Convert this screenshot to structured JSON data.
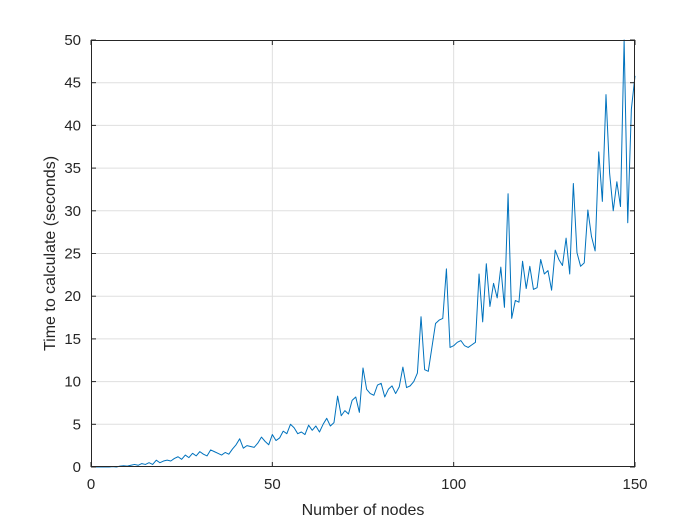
{
  "chart_data": {
    "type": "line",
    "title": "",
    "xlabel": "Number of nodes",
    "ylabel": "Time to calculate (seconds)",
    "xlim": [
      0,
      150
    ],
    "ylim": [
      0,
      50
    ],
    "xticks": [
      0,
      50,
      100,
      150
    ],
    "yticks": [
      0,
      5,
      10,
      15,
      20,
      25,
      30,
      35,
      40,
      45,
      50
    ],
    "grid": true,
    "legend": "none",
    "line_color": "#0072BD",
    "series": [
      {
        "x": [
          1,
          2,
          3,
          4,
          5,
          6,
          7,
          8,
          9,
          10,
          11,
          12,
          13,
          14,
          15,
          16,
          17,
          18,
          19,
          20,
          21,
          22,
          23,
          24,
          25,
          26,
          27,
          28,
          29,
          30,
          31,
          32,
          33,
          34,
          35,
          36,
          37,
          38,
          39,
          40,
          41,
          42,
          43,
          44,
          45,
          46,
          47,
          48,
          49,
          50,
          51,
          52,
          53,
          54,
          55,
          56,
          57,
          58,
          59,
          60,
          61,
          62,
          63,
          64,
          65,
          66,
          67,
          68,
          69,
          70,
          71,
          72,
          73,
          74,
          75,
          76,
          77,
          78,
          79,
          80,
          81,
          82,
          83,
          84,
          85,
          86,
          87,
          88,
          89,
          90,
          91,
          92,
          93,
          94,
          95,
          96,
          97,
          98,
          99,
          100,
          101,
          102,
          103,
          104,
          105,
          106,
          107,
          108,
          109,
          110,
          111,
          112,
          113,
          114,
          115,
          116,
          117,
          118,
          119,
          120,
          121,
          122,
          123,
          124,
          125,
          126,
          127,
          128,
          129,
          130,
          131,
          132,
          133,
          134,
          135,
          136,
          137,
          138,
          139,
          140,
          141,
          142,
          143,
          144,
          145,
          146,
          147,
          148,
          149,
          150
        ],
        "y": [
          0.0,
          0.0,
          0.0,
          0.0,
          0.0,
          0.05,
          0.0,
          0.1,
          0.15,
          0.1,
          0.2,
          0.3,
          0.2,
          0.4,
          0.3,
          0.5,
          0.3,
          0.8,
          0.5,
          0.7,
          0.8,
          0.7,
          1.0,
          1.2,
          0.9,
          1.4,
          1.1,
          1.6,
          1.3,
          1.8,
          1.5,
          1.3,
          2.0,
          1.8,
          1.6,
          1.4,
          1.7,
          1.5,
          2.1,
          2.6,
          3.3,
          2.2,
          2.5,
          2.4,
          2.3,
          2.8,
          3.5,
          3.0,
          2.6,
          3.8,
          3.1,
          3.4,
          4.2,
          3.9,
          5.0,
          4.6,
          3.9,
          4.1,
          3.8,
          4.9,
          4.3,
          4.8,
          4.1,
          5.0,
          5.7,
          4.8,
          5.2,
          8.3,
          6.0,
          6.6,
          6.2,
          7.8,
          8.2,
          6.4,
          11.6,
          9.1,
          8.6,
          8.4,
          9.6,
          9.8,
          8.2,
          9.1,
          9.5,
          8.6,
          9.4,
          11.7,
          9.3,
          9.5,
          10.0,
          11.0,
          17.6,
          11.4,
          11.2,
          14.0,
          16.8,
          17.2,
          17.4,
          23.2,
          14.0,
          14.2,
          14.6,
          14.8,
          14.2,
          14.0,
          14.3,
          14.6,
          22.6,
          17.0,
          23.8,
          18.8,
          21.5,
          19.8,
          23.4,
          18.7,
          32.0,
          17.4,
          19.5,
          19.3,
          24.1,
          20.9,
          23.5,
          20.8,
          21.0,
          24.3,
          22.6,
          23.0,
          20.7,
          25.4,
          24.3,
          23.6,
          26.8,
          22.6,
          33.2,
          25.1,
          23.5,
          23.9,
          30.1,
          27.0,
          25.3,
          36.9,
          31.1,
          43.6,
          34.4,
          30.0,
          33.4,
          30.5,
          50.0,
          28.6,
          41.9,
          45.8
        ]
      }
    ]
  }
}
